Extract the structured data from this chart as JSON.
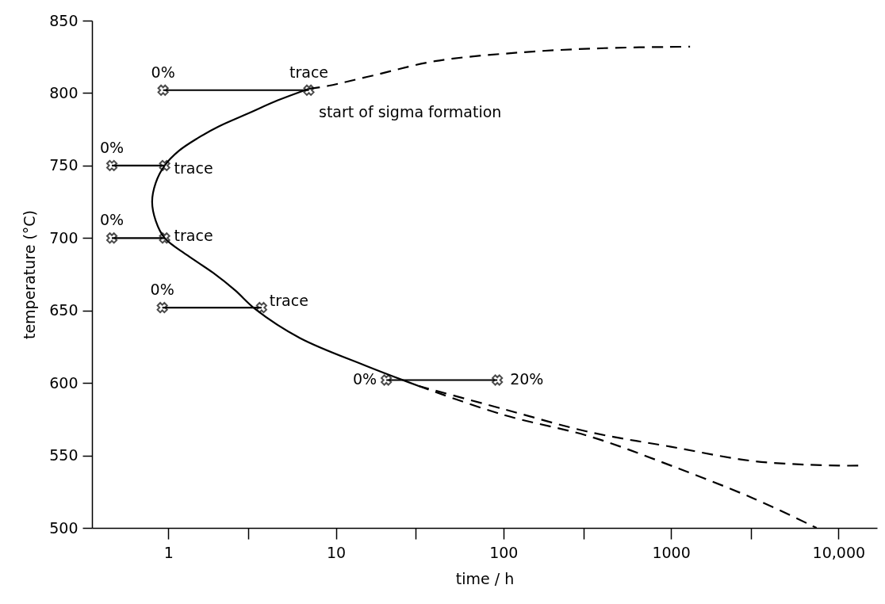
{
  "chart_data": {
    "type": "line",
    "xlabel": "time / h",
    "ylabel": "temperature (°C)",
    "log": "x",
    "xlim": [
      0.35,
      17000
    ],
    "ylim": [
      500,
      850
    ],
    "xticks": [
      1,
      {
        "value": 3,
        "label": null
      },
      10,
      {
        "value": 30,
        "label": null
      },
      100,
      {
        "value": 300,
        "label": null
      },
      1000,
      {
        "value": 3000,
        "label": null
      },
      {
        "value": 10000,
        "label": "10,000"
      }
    ],
    "yticks": [
      500,
      550,
      600,
      650,
      700,
      750,
      800,
      850
    ],
    "grid": false,
    "series": [
      {
        "color": "#000000",
        "line_style": "solid",
        "marker": "none",
        "x": [
          6.9,
          4.5,
          3.0,
          2.0,
          1.5,
          1.15,
          0.95,
          0.84,
          0.8,
          0.84,
          0.95,
          1.3,
          1.85,
          2.5,
          3.3,
          6.1,
          15,
          31
        ],
        "values": [
          803,
          795,
          786,
          777,
          769,
          760,
          750,
          738,
          725,
          712,
          700,
          688,
          676,
          664,
          651,
          631,
          612,
          598
        ]
      },
      {
        "color": "#000000",
        "line_style": "dashed",
        "marker": "none",
        "x": [
          6.9,
          9,
          16.5,
          39,
          125,
          400,
          1300
        ],
        "values": [
          803,
          805,
          812,
          822,
          828,
          831,
          832
        ]
      },
      {
        "color": "#000000",
        "line_style": "dashed",
        "marker": "none",
        "x": [
          31,
          100,
          330,
          1000,
          3160,
          10000,
          13200
        ],
        "values": [
          598,
          582,
          566,
          556,
          546,
          543,
          543
        ]
      },
      {
        "color": "#000000",
        "line_style": "dashed",
        "marker": "none",
        "x": [
          31,
          100,
          330,
          1000,
          3160,
          7400
        ],
        "values": [
          598,
          578,
          563,
          543,
          520,
          500
        ]
      },
      {
        "color": "#000000",
        "line_style": "solid",
        "marker": "cross",
        "x": [
          0.93,
          6.9
        ],
        "values": [
          802,
          802
        ]
      },
      {
        "color": "#000000",
        "line_style": "solid",
        "marker": "cross",
        "x": [
          0.46,
          0.95
        ],
        "values": [
          750,
          750
        ]
      },
      {
        "color": "#000000",
        "line_style": "solid",
        "marker": "cross",
        "x": [
          0.46,
          0.95
        ],
        "values": [
          700,
          700
        ]
      },
      {
        "color": "#000000",
        "line_style": "solid",
        "marker": "cross",
        "x": [
          0.92,
          3.6
        ],
        "values": [
          652,
          652
        ]
      },
      {
        "color": "#000000",
        "line_style": "solid",
        "marker": "cross",
        "x": [
          20,
          92
        ],
        "values": [
          602,
          602
        ]
      }
    ],
    "annotations": [
      {
        "text": "0%",
        "x": 0.93,
        "y": 802
      },
      {
        "text": "trace",
        "x": 6.9,
        "y": 802
      },
      {
        "text": "0%",
        "x": 0.46,
        "y": 750
      },
      {
        "text": "trace",
        "x": 0.95,
        "y": 750
      },
      {
        "text": "0%",
        "x": 0.46,
        "y": 700
      },
      {
        "text": "trace",
        "x": 0.95,
        "y": 700
      },
      {
        "text": "0%",
        "x": 0.92,
        "y": 652
      },
      {
        "text": "trace",
        "x": 3.6,
        "y": 652
      },
      {
        "text": "0%",
        "x": 20,
        "y": 602
      },
      {
        "text": "20%",
        "x": 92,
        "y": 602
      },
      "start of sigma formation"
    ]
  }
}
